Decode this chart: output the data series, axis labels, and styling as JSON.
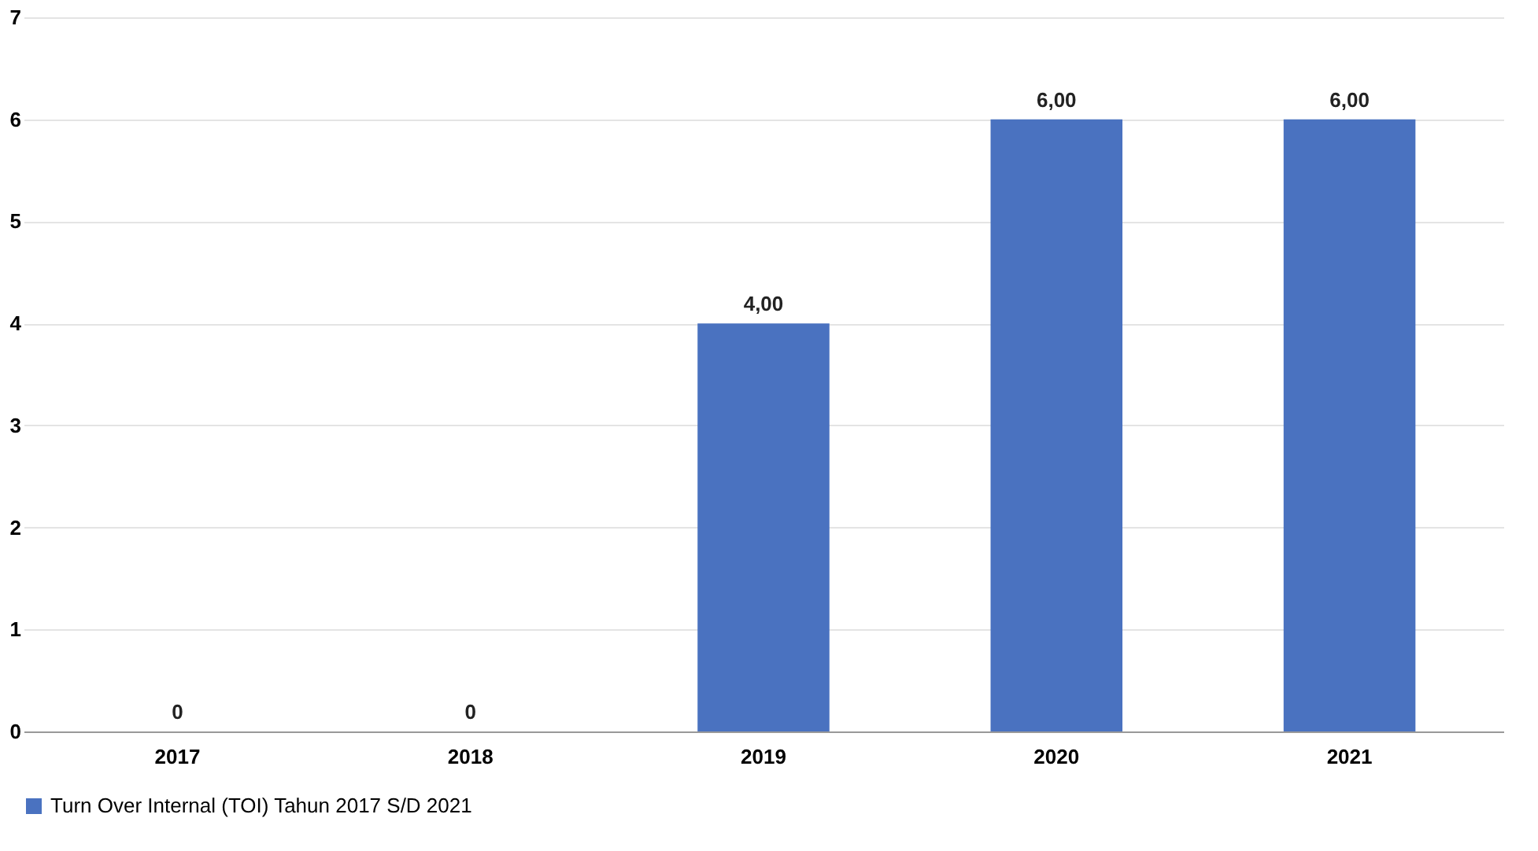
{
  "chart_data": {
    "type": "bar",
    "categories": [
      "2017",
      "2018",
      "2019",
      "2020",
      "2021"
    ],
    "series": [
      {
        "name": "Turn Over Internal (TOI) Tahun 2017 S/D 2021",
        "color": "#4a72c0",
        "values": [
          0,
          0,
          4,
          6,
          6
        ],
        "value_labels": [
          "0",
          "0",
          "4,00",
          "6,00",
          "6,00"
        ]
      }
    ],
    "ylim": [
      0,
      7
    ],
    "yticks": [
      0,
      1,
      2,
      3,
      4,
      5,
      6,
      7
    ],
    "grid": "y",
    "legend": "bottom"
  }
}
